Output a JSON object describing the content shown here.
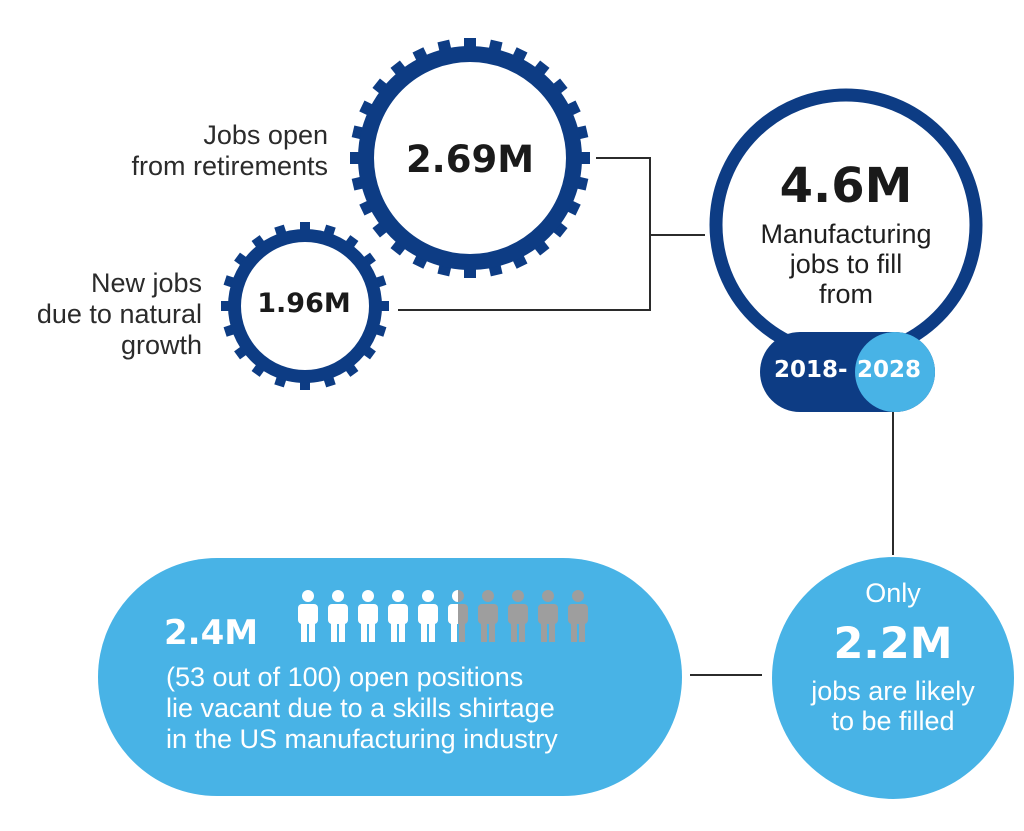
{
  "retirements": {
    "value": "2.69M",
    "label_lines": [
      "Jobs open",
      "from retirements"
    ]
  },
  "growth": {
    "value": "1.96M",
    "label_lines": [
      "New jobs",
      "due to natural",
      "growth"
    ]
  },
  "total": {
    "value": "4.6M",
    "desc_lines": [
      "Manufacturing",
      "jobs to fill",
      "from"
    ],
    "period_start": "2018-",
    "period_end": "2028"
  },
  "filled": {
    "prefix": "Only",
    "value": "2.2M",
    "desc_lines": [
      "jobs are likely",
      "to be filled"
    ]
  },
  "vacant": {
    "value": "2.4M",
    "desc_lines": [
      "(53 out of 100) open positions",
      "lie vacant due to a skills shirtage",
      "in the US manufacturing industry"
    ],
    "people_total": 10,
    "people_highlighted": 5.5
  },
  "colors": {
    "navy": "#0d3c84",
    "light_blue": "#48b3e6",
    "person_white": "#ffffff",
    "person_grey": "#9e9e9e",
    "line": "#2b2b2b"
  }
}
